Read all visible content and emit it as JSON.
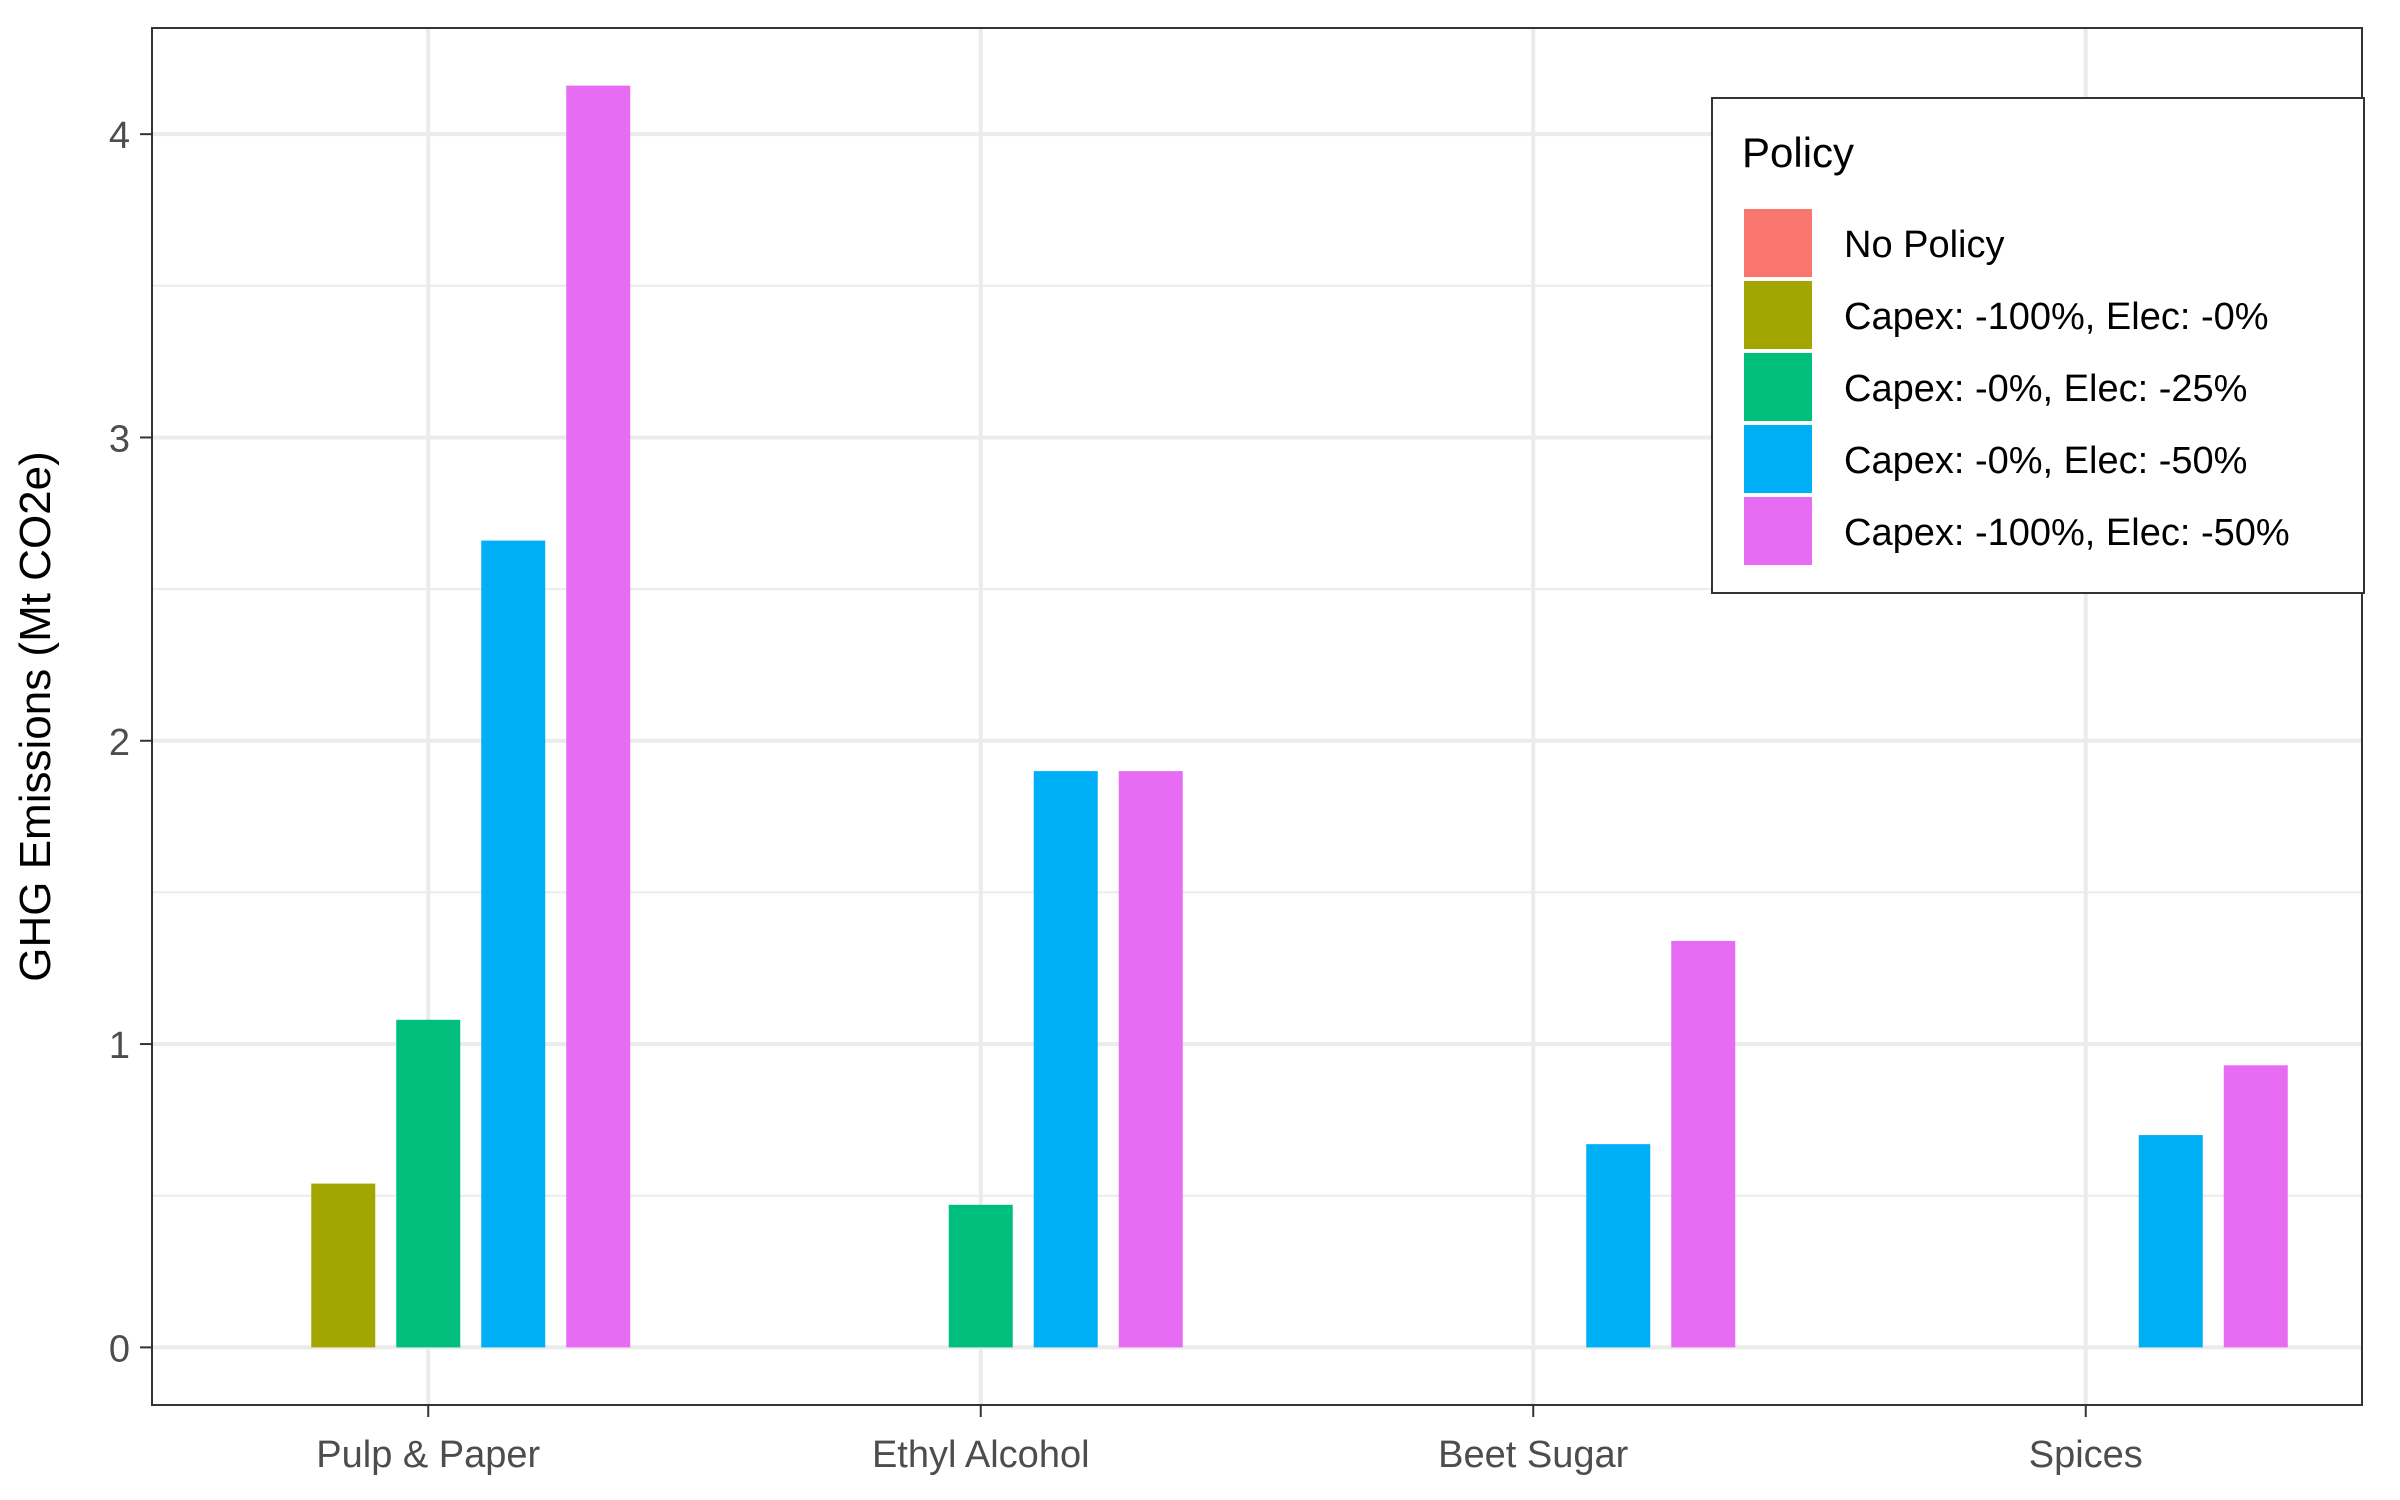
{
  "chart_data": {
    "type": "bar",
    "title": "",
    "xlabel": "",
    "ylabel": "GHG Emissions (Mt CO2e)",
    "categories": [
      "Pulp & Paper",
      "Ethyl Alcohol",
      "Beet Sugar",
      "Spices"
    ],
    "ylim": [
      -0.19,
      4.35
    ],
    "yticks": [
      0,
      1,
      2,
      3,
      4
    ],
    "grid": true,
    "legend": {
      "title": "Policy",
      "position": "top-right"
    },
    "series": [
      {
        "name": "No Policy",
        "color": "#F8766D",
        "values": [
          0,
          0,
          0,
          0
        ]
      },
      {
        "name": "Capex: -100%, Elec: -0%",
        "color": "#A3A500",
        "values": [
          0.54,
          0,
          0,
          0
        ]
      },
      {
        "name": "Capex: -0%, Elec: -25%",
        "color": "#00BF7D",
        "values": [
          1.08,
          0.47,
          0,
          0
        ]
      },
      {
        "name": "Capex: -0%, Elec: -50%",
        "color": "#00B0F6",
        "values": [
          2.66,
          1.9,
          0.67,
          0.7
        ]
      },
      {
        "name": "Capex: -100%, Elec: -50%",
        "color": "#E76BF3",
        "values": [
          4.16,
          1.9,
          1.34,
          0.93
        ]
      }
    ]
  }
}
